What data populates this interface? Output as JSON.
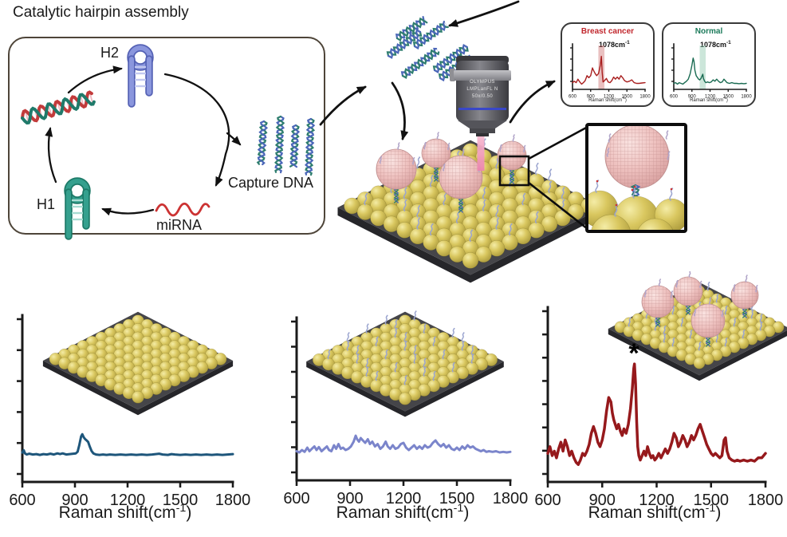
{
  "figure": {
    "title": "Catalytic hairpin assembly",
    "cha": {
      "h2": "H2",
      "h1": "H1",
      "mirna": "miRNA",
      "capture": "Capture DNA"
    },
    "objective": {
      "brand": "OLYMPUS",
      "model": "LMPLanFL N",
      "spec": "50x/0.50"
    },
    "xaxis": {
      "pre": "Raman shift(cm",
      "sup": "-1",
      "post": ")"
    },
    "peak_label": {
      "pre": "1078cm",
      "sup": "-1"
    },
    "panel3_star": "*"
  },
  "colors": {
    "panel1_line": "#1e567b",
    "panel2_line": "#7b85cb",
    "panel3_line": "#96191c",
    "breast_line": "#a81e1e",
    "breast_title": "#c1272d",
    "breast_band": "rgba(201,98,98,0.40)",
    "normal_line": "#1a6b52",
    "normal_title": "#1b7a5a",
    "normal_band": "rgba(143,200,174,0.45)",
    "axis": "#1a1a1a",
    "arrow": "#111111",
    "gold": "#d9c75f",
    "pink": "#efc6c4"
  },
  "chart_data": [
    {
      "id": "panel1",
      "type": "line",
      "title": "",
      "xlabel": "Raman shift(cm-1)",
      "ylabel": "",
      "xlim": [
        600,
        1800
      ],
      "x_ticks": [
        "600",
        "900",
        "1200",
        "1500",
        "1800"
      ],
      "points": [
        [
          600,
          10
        ],
        [
          608,
          16
        ],
        [
          615,
          8
        ],
        [
          625,
          5
        ],
        [
          640,
          7
        ],
        [
          660,
          5
        ],
        [
          680,
          6
        ],
        [
          700,
          4
        ],
        [
          720,
          6
        ],
        [
          740,
          5
        ],
        [
          760,
          7
        ],
        [
          780,
          5
        ],
        [
          800,
          8
        ],
        [
          815,
          6
        ],
        [
          830,
          8
        ],
        [
          850,
          5
        ],
        [
          870,
          6
        ],
        [
          890,
          7
        ],
        [
          905,
          8
        ],
        [
          915,
          12
        ],
        [
          925,
          30
        ],
        [
          935,
          52
        ],
        [
          942,
          58
        ],
        [
          950,
          50
        ],
        [
          958,
          45
        ],
        [
          966,
          42
        ],
        [
          975,
          38
        ],
        [
          985,
          25
        ],
        [
          995,
          14
        ],
        [
          1005,
          8
        ],
        [
          1020,
          5
        ],
        [
          1040,
          4
        ],
        [
          1060,
          5
        ],
        [
          1080,
          4
        ],
        [
          1100,
          5
        ],
        [
          1130,
          4
        ],
        [
          1160,
          5
        ],
        [
          1190,
          4
        ],
        [
          1220,
          5
        ],
        [
          1250,
          4
        ],
        [
          1280,
          5
        ],
        [
          1310,
          4
        ],
        [
          1340,
          5
        ],
        [
          1360,
          6
        ],
        [
          1380,
          7
        ],
        [
          1400,
          5
        ],
        [
          1430,
          4
        ],
        [
          1450,
          6
        ],
        [
          1470,
          5
        ],
        [
          1500,
          4
        ],
        [
          1530,
          5
        ],
        [
          1560,
          4
        ],
        [
          1590,
          5
        ],
        [
          1620,
          4
        ],
        [
          1650,
          5
        ],
        [
          1680,
          4
        ],
        [
          1710,
          5
        ],
        [
          1740,
          4
        ],
        [
          1770,
          5
        ],
        [
          1800,
          6
        ]
      ]
    },
    {
      "id": "panel2",
      "type": "line",
      "title": "",
      "xlabel": "Raman shift(cm-1)",
      "ylabel": "",
      "xlim": [
        600,
        1800
      ],
      "x_ticks": [
        "600",
        "900",
        "1200",
        "1500",
        "1800"
      ],
      "points": [
        [
          600,
          6
        ],
        [
          615,
          4
        ],
        [
          630,
          8
        ],
        [
          645,
          5
        ],
        [
          660,
          12
        ],
        [
          672,
          6
        ],
        [
          685,
          10
        ],
        [
          700,
          14
        ],
        [
          712,
          8
        ],
        [
          725,
          13
        ],
        [
          740,
          6
        ],
        [
          755,
          10
        ],
        [
          770,
          14
        ],
        [
          782,
          8
        ],
        [
          795,
          6
        ],
        [
          810,
          16
        ],
        [
          822,
          10
        ],
        [
          835,
          18
        ],
        [
          848,
          10
        ],
        [
          860,
          12
        ],
        [
          875,
          8
        ],
        [
          890,
          10
        ],
        [
          905,
          14
        ],
        [
          920,
          22
        ],
        [
          932,
          32
        ],
        [
          940,
          26
        ],
        [
          950,
          22
        ],
        [
          960,
          28
        ],
        [
          972,
          24
        ],
        [
          985,
          20
        ],
        [
          1000,
          26
        ],
        [
          1012,
          18
        ],
        [
          1025,
          22
        ],
        [
          1040,
          14
        ],
        [
          1055,
          18
        ],
        [
          1070,
          10
        ],
        [
          1085,
          14
        ],
        [
          1100,
          22
        ],
        [
          1112,
          14
        ],
        [
          1125,
          10
        ],
        [
          1140,
          16
        ],
        [
          1155,
          10
        ],
        [
          1170,
          12
        ],
        [
          1185,
          18
        ],
        [
          1200,
          20
        ],
        [
          1215,
          12
        ],
        [
          1230,
          8
        ],
        [
          1245,
          12
        ],
        [
          1260,
          16
        ],
        [
          1275,
          10
        ],
        [
          1290,
          14
        ],
        [
          1305,
          10
        ],
        [
          1320,
          16
        ],
        [
          1335,
          12
        ],
        [
          1350,
          14
        ],
        [
          1365,
          20
        ],
        [
          1380,
          24
        ],
        [
          1395,
          18
        ],
        [
          1410,
          14
        ],
        [
          1425,
          18
        ],
        [
          1440,
          12
        ],
        [
          1455,
          16
        ],
        [
          1470,
          10
        ],
        [
          1485,
          8
        ],
        [
          1500,
          12
        ],
        [
          1515,
          8
        ],
        [
          1530,
          14
        ],
        [
          1545,
          10
        ],
        [
          1560,
          16
        ],
        [
          1575,
          12
        ],
        [
          1590,
          14
        ],
        [
          1605,
          10
        ],
        [
          1620,
          8
        ],
        [
          1635,
          6
        ],
        [
          1650,
          8
        ],
        [
          1665,
          5
        ],
        [
          1680,
          6
        ],
        [
          1700,
          5
        ],
        [
          1720,
          6
        ],
        [
          1740,
          4
        ],
        [
          1760,
          5
        ],
        [
          1780,
          4
        ],
        [
          1800,
          5
        ]
      ]
    },
    {
      "id": "panel3",
      "type": "line",
      "title": "",
      "xlabel": "Raman shift(cm-1)",
      "ylabel": "",
      "xlim": [
        600,
        1800
      ],
      "x_ticks": [
        "600",
        "900",
        "1200",
        "1500",
        "1800"
      ],
      "annotation": {
        "text": "*",
        "x": 1078
      },
      "points": [
        [
          600,
          12
        ],
        [
          612,
          18
        ],
        [
          624,
          10
        ],
        [
          636,
          14
        ],
        [
          648,
          8
        ],
        [
          660,
          16
        ],
        [
          672,
          22
        ],
        [
          684,
          14
        ],
        [
          696,
          24
        ],
        [
          708,
          18
        ],
        [
          720,
          10
        ],
        [
          732,
          14
        ],
        [
          744,
          8
        ],
        [
          756,
          4
        ],
        [
          768,
          2
        ],
        [
          780,
          6
        ],
        [
          792,
          12
        ],
        [
          804,
          10
        ],
        [
          816,
          14
        ],
        [
          828,
          20
        ],
        [
          840,
          30
        ],
        [
          852,
          36
        ],
        [
          864,
          30
        ],
        [
          876,
          22
        ],
        [
          888,
          18
        ],
        [
          900,
          24
        ],
        [
          912,
          34
        ],
        [
          924,
          50
        ],
        [
          936,
          62
        ],
        [
          948,
          58
        ],
        [
          956,
          48
        ],
        [
          964,
          42
        ],
        [
          972,
          38
        ],
        [
          980,
          34
        ],
        [
          990,
          38
        ],
        [
          1000,
          32
        ],
        [
          1010,
          28
        ],
        [
          1020,
          34
        ],
        [
          1032,
          30
        ],
        [
          1044,
          38
        ],
        [
          1056,
          52
        ],
        [
          1066,
          70
        ],
        [
          1074,
          88
        ],
        [
          1078,
          92
        ],
        [
          1084,
          74
        ],
        [
          1090,
          40
        ],
        [
          1096,
          18
        ],
        [
          1102,
          10
        ],
        [
          1110,
          6
        ],
        [
          1120,
          10
        ],
        [
          1130,
          14
        ],
        [
          1140,
          10
        ],
        [
          1150,
          18
        ],
        [
          1160,
          12
        ],
        [
          1170,
          8
        ],
        [
          1180,
          10
        ],
        [
          1190,
          6
        ],
        [
          1200,
          8
        ],
        [
          1212,
          12
        ],
        [
          1224,
          8
        ],
        [
          1236,
          12
        ],
        [
          1248,
          16
        ],
        [
          1260,
          12
        ],
        [
          1272,
          16
        ],
        [
          1284,
          22
        ],
        [
          1296,
          30
        ],
        [
          1308,
          26
        ],
        [
          1320,
          18
        ],
        [
          1332,
          22
        ],
        [
          1344,
          28
        ],
        [
          1356,
          24
        ],
        [
          1368,
          18
        ],
        [
          1380,
          22
        ],
        [
          1392,
          28
        ],
        [
          1404,
          24
        ],
        [
          1416,
          28
        ],
        [
          1428,
          34
        ],
        [
          1440,
          38
        ],
        [
          1452,
          32
        ],
        [
          1464,
          26
        ],
        [
          1476,
          20
        ],
        [
          1488,
          16
        ],
        [
          1500,
          12
        ],
        [
          1512,
          10
        ],
        [
          1524,
          12
        ],
        [
          1536,
          10
        ],
        [
          1548,
          8
        ],
        [
          1560,
          10
        ],
        [
          1572,
          24
        ],
        [
          1580,
          26
        ],
        [
          1588,
          14
        ],
        [
          1600,
          8
        ],
        [
          1615,
          6
        ],
        [
          1630,
          5
        ],
        [
          1645,
          6
        ],
        [
          1660,
          5
        ],
        [
          1680,
          6
        ],
        [
          1700,
          5
        ],
        [
          1720,
          6
        ],
        [
          1740,
          5
        ],
        [
          1760,
          8
        ],
        [
          1780,
          8
        ],
        [
          1800,
          12
        ]
      ]
    },
    {
      "id": "breast",
      "type": "line",
      "title": "Breast cancer",
      "xlabel": "Raman shift(cm-1)",
      "ylabel": "",
      "xlim": [
        600,
        1800
      ],
      "x_ticks": [
        "600",
        "900",
        "1200",
        "1500",
        "1800"
      ],
      "band": {
        "center": 1078,
        "width": 100
      },
      "points": [
        [
          600,
          10
        ],
        [
          630,
          14
        ],
        [
          660,
          10
        ],
        [
          690,
          20
        ],
        [
          720,
          12
        ],
        [
          750,
          6
        ],
        [
          780,
          10
        ],
        [
          810,
          16
        ],
        [
          840,
          30
        ],
        [
          870,
          24
        ],
        [
          900,
          30
        ],
        [
          930,
          52
        ],
        [
          950,
          44
        ],
        [
          975,
          36
        ],
        [
          1000,
          30
        ],
        [
          1030,
          36
        ],
        [
          1060,
          60
        ],
        [
          1078,
          85
        ],
        [
          1090,
          40
        ],
        [
          1105,
          12
        ],
        [
          1130,
          16
        ],
        [
          1160,
          22
        ],
        [
          1190,
          12
        ],
        [
          1220,
          10
        ],
        [
          1250,
          16
        ],
        [
          1280,
          26
        ],
        [
          1310,
          20
        ],
        [
          1340,
          26
        ],
        [
          1370,
          20
        ],
        [
          1400,
          30
        ],
        [
          1430,
          24
        ],
        [
          1460,
          16
        ],
        [
          1500,
          12
        ],
        [
          1540,
          14
        ],
        [
          1580,
          18
        ],
        [
          1620,
          10
        ],
        [
          1660,
          8
        ],
        [
          1700,
          8
        ],
        [
          1750,
          9
        ],
        [
          1800,
          10
        ]
      ]
    },
    {
      "id": "normal",
      "type": "line",
      "title": "Normal",
      "xlabel": "Raman shift(cm-1)",
      "ylabel": "",
      "xlim": [
        600,
        1800
      ],
      "x_ticks": [
        "600",
        "900",
        "1200",
        "1500",
        "1800"
      ],
      "band": {
        "center": 1078,
        "width": 100
      },
      "points": [
        [
          600,
          8
        ],
        [
          630,
          10
        ],
        [
          660,
          6
        ],
        [
          690,
          10
        ],
        [
          720,
          8
        ],
        [
          750,
          6
        ],
        [
          780,
          10
        ],
        [
          810,
          14
        ],
        [
          840,
          20
        ],
        [
          870,
          35
        ],
        [
          900,
          60
        ],
        [
          920,
          80
        ],
        [
          935,
          70
        ],
        [
          950,
          45
        ],
        [
          970,
          30
        ],
        [
          990,
          25
        ],
        [
          1010,
          20
        ],
        [
          1030,
          18
        ],
        [
          1050,
          22
        ],
        [
          1070,
          30
        ],
        [
          1080,
          34
        ],
        [
          1090,
          22
        ],
        [
          1110,
          14
        ],
        [
          1130,
          10
        ],
        [
          1160,
          12
        ],
        [
          1190,
          10
        ],
        [
          1220,
          12
        ],
        [
          1250,
          18
        ],
        [
          1280,
          14
        ],
        [
          1310,
          20
        ],
        [
          1340,
          14
        ],
        [
          1370,
          10
        ],
        [
          1400,
          12
        ],
        [
          1430,
          20
        ],
        [
          1450,
          16
        ],
        [
          1480,
          10
        ],
        [
          1520,
          8
        ],
        [
          1560,
          10
        ],
        [
          1600,
          8
        ],
        [
          1640,
          8
        ],
        [
          1680,
          7
        ],
        [
          1720,
          8
        ],
        [
          1760,
          7
        ],
        [
          1800,
          8
        ]
      ]
    }
  ]
}
